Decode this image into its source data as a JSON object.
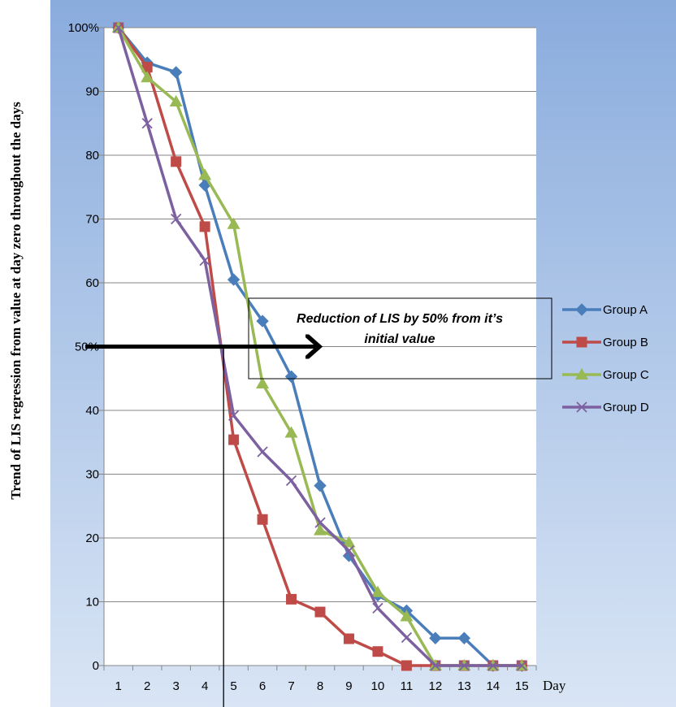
{
  "chart_data": {
    "type": "line",
    "ylabel": "Trend of LIS regression from value at day zero throughout the days",
    "xlabel": "Day",
    "categories": [
      "1",
      "2",
      "3",
      "4",
      "5",
      "6",
      "7",
      "8",
      "9",
      "10",
      "11",
      "12",
      "13",
      "14",
      "15"
    ],
    "ylim": [
      0,
      100
    ],
    "y_ticks": [
      "0",
      "10",
      "20",
      "30",
      "40",
      "50%",
      "60",
      "70",
      "80",
      "90",
      "100%"
    ],
    "grid": true,
    "legend_position": "right",
    "series": [
      {
        "name": "Group A",
        "color": "#4a7ebb",
        "marker": "diamond",
        "values": [
          100,
          94.5,
          93,
          75.3,
          60.5,
          54,
          45.3,
          28.2,
          17.2,
          11,
          8.6,
          4.3,
          4.3,
          0,
          0
        ]
      },
      {
        "name": "Group B",
        "color": "#be4b48",
        "marker": "square",
        "values": [
          100,
          93.8,
          79,
          68.8,
          35.4,
          22.9,
          10.4,
          8.4,
          4.2,
          2.2,
          0,
          0,
          0,
          0,
          0
        ]
      },
      {
        "name": "Group C",
        "color": "#98b954",
        "marker": "triangle",
        "values": [
          100,
          92.2,
          88.4,
          76.9,
          69.2,
          44.2,
          36.5,
          21.2,
          19.3,
          11.5,
          7.7,
          0,
          0,
          0,
          0
        ]
      },
      {
        "name": "Group D",
        "color": "#7d60a0",
        "marker": "x",
        "values": [
          100,
          85,
          70,
          63.5,
          39.2,
          33.5,
          29,
          22.4,
          18,
          9,
          4.4,
          0,
          0,
          0,
          0
        ]
      }
    ],
    "annotation": {
      "lines": [
        "Reduction of LIS by 50% from it’s",
        "initial value"
      ],
      "level": 50,
      "marker_day": 4.65
    }
  }
}
